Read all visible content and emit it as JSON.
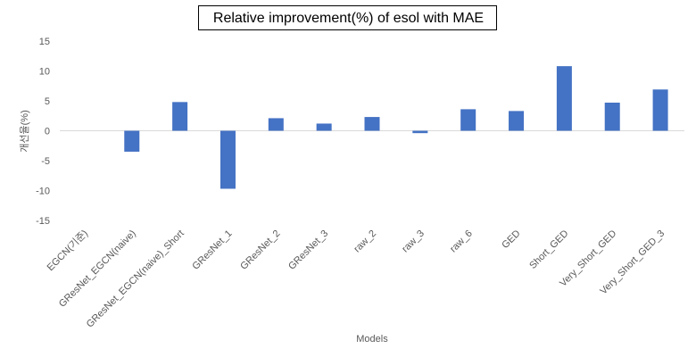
{
  "chart_data": {
    "type": "bar",
    "title": "Relative improvement(%) of esol with MAE",
    "xlabel": "Models",
    "ylabel": "개선율(%)",
    "ylim": [
      -15,
      15
    ],
    "yticks": [
      15,
      10,
      5,
      0,
      -5,
      -10,
      -15
    ],
    "grid": false,
    "legend": "none",
    "bar_color": "#4472C4",
    "categories": [
      "EGCN(기준)",
      "GResNet_EGCN(naive)",
      "GResNet_EGCN(naive)_Short",
      "GResNet_1",
      "GResNet_2",
      "GResNet_3",
      "raw_2",
      "raw_3",
      "raw_6",
      "GED",
      "Short_GED",
      "Very_Short_GED",
      "Very_Short_GED_3"
    ],
    "values": [
      0,
      -3.5,
      4.8,
      -9.7,
      2.1,
      1.2,
      2.3,
      -0.4,
      3.6,
      3.3,
      10.8,
      4.7,
      6.9
    ]
  }
}
